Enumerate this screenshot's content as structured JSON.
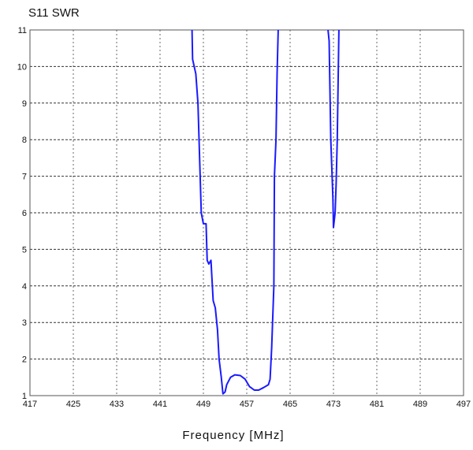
{
  "chart_data": {
    "type": "line",
    "title": "S11 SWR",
    "xlabel": "Frequency [MHz]",
    "ylabel": "",
    "xlim": [
      417,
      497
    ],
    "ylim": [
      1,
      11
    ],
    "x_ticks": [
      "417",
      "425",
      "433",
      "441",
      "449",
      "457",
      "465",
      "473",
      "481",
      "489",
      "497"
    ],
    "y_ticks": [
      "1",
      "2",
      "3",
      "4",
      "5",
      "6",
      "7",
      "8",
      "9",
      "10",
      "11"
    ],
    "grid": true,
    "line_color": "#1a1aff",
    "series": [
      {
        "name": "",
        "segments": [
          [
            [
              446.9,
              11.0
            ],
            [
              447.0,
              10.2
            ],
            [
              447.6,
              9.8
            ],
            [
              448.0,
              9.0
            ],
            [
              448.4,
              7.0
            ],
            [
              448.6,
              6.0
            ],
            [
              449.0,
              5.7
            ],
            [
              449.5,
              5.7
            ],
            [
              449.7,
              4.7
            ],
            [
              450.0,
              4.6
            ],
            [
              450.4,
              4.7
            ],
            [
              450.8,
              3.6
            ],
            [
              451.2,
              3.4
            ],
            [
              451.6,
              2.8
            ],
            [
              451.9,
              2.0
            ],
            [
              452.3,
              1.5
            ],
            [
              452.6,
              1.05
            ],
            [
              453.0,
              1.1
            ],
            [
              453.3,
              1.3
            ],
            [
              454.0,
              1.5
            ],
            [
              454.8,
              1.57
            ],
            [
              455.8,
              1.55
            ],
            [
              456.7,
              1.45
            ],
            [
              457.5,
              1.25
            ],
            [
              458.4,
              1.15
            ],
            [
              459.2,
              1.15
            ],
            [
              460.1,
              1.22
            ],
            [
              461.0,
              1.3
            ],
            [
              461.3,
              1.45
            ],
            [
              461.6,
              2.3
            ],
            [
              462.0,
              4.0
            ],
            [
              462.1,
              7.0
            ],
            [
              462.4,
              8.0
            ],
            [
              462.6,
              9.8
            ],
            [
              462.8,
              11.0
            ]
          ],
          [
            [
              472.0,
              11.0
            ],
            [
              472.2,
              10.7
            ],
            [
              472.5,
              8.0
            ],
            [
              472.9,
              6.4
            ],
            [
              473.0,
              5.6
            ],
            [
              473.3,
              6.0
            ],
            [
              473.5,
              6.8
            ],
            [
              473.7,
              8.0
            ],
            [
              473.9,
              10.0
            ],
            [
              474.0,
              11.0
            ]
          ]
        ]
      }
    ]
  }
}
